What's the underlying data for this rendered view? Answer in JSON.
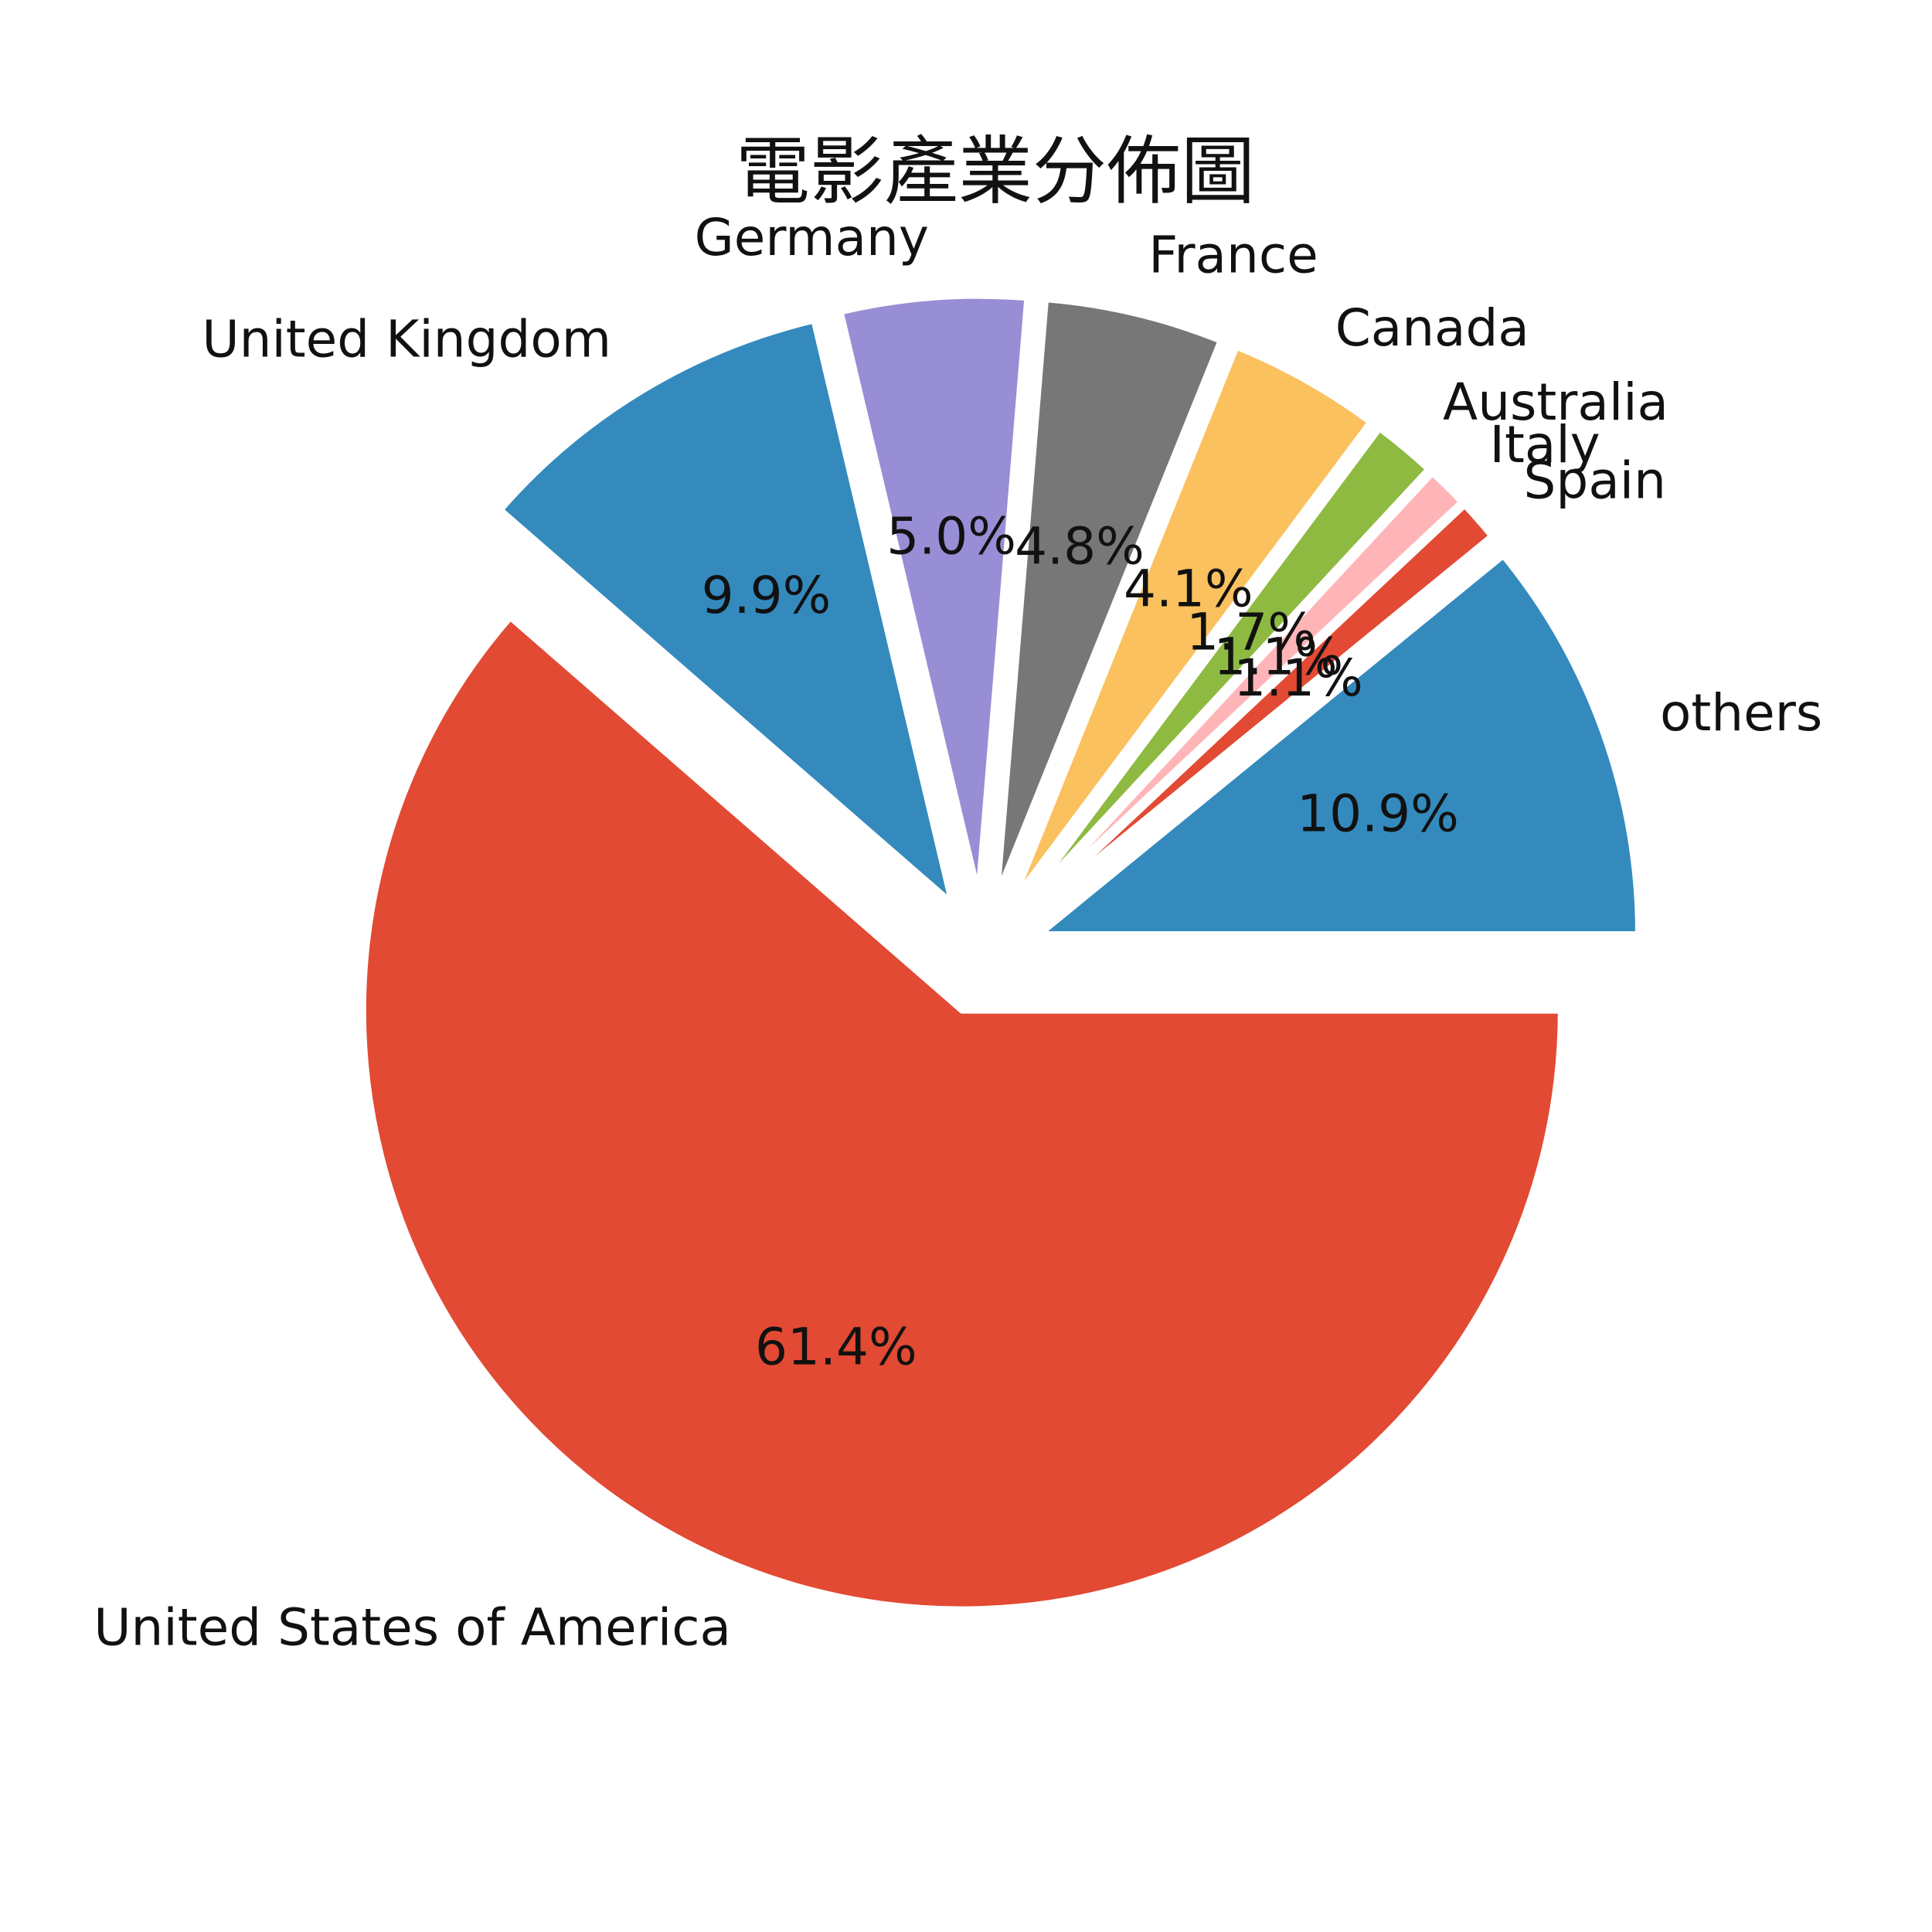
{
  "chart_data": {
    "type": "pie",
    "title": "電影產業分佈圖",
    "start_angle_deg": 0,
    "direction": "clockwise",
    "slices": [
      {
        "label": "United States of America",
        "value": 61.4,
        "pct_label": "61.4%",
        "color": "#E24A33",
        "exploded": true
      },
      {
        "label": "United Kingdom",
        "value": 9.9,
        "pct_label": "9.9%",
        "color": "#348ABD",
        "exploded": true
      },
      {
        "label": "Germany",
        "value": 5.0,
        "pct_label": "5.0%",
        "color": "#988ED5",
        "exploded": true
      },
      {
        "label": "France",
        "value": 4.8,
        "pct_label": "4.8%",
        "color": "#777777",
        "exploded": true
      },
      {
        "label": "Canada",
        "value": 4.1,
        "pct_label": "4.1%",
        "color": "#FBC15E",
        "exploded": true
      },
      {
        "label": "Australia",
        "value": 1.7,
        "pct_label": "1.7%",
        "color": "#8EBA42",
        "exploded": true
      },
      {
        "label": "Italy",
        "value": 1.1,
        "pct_label": "1.1%",
        "color": "#FFB5B8",
        "exploded": true
      },
      {
        "label": "Spain",
        "value": 1.1,
        "pct_label": "1.1%",
        "color": "#E24A33",
        "exploded": true
      },
      {
        "label": "others",
        "value": 10.9,
        "pct_label": "10.9%",
        "color": "#348ABD",
        "exploded": true
      }
    ]
  }
}
